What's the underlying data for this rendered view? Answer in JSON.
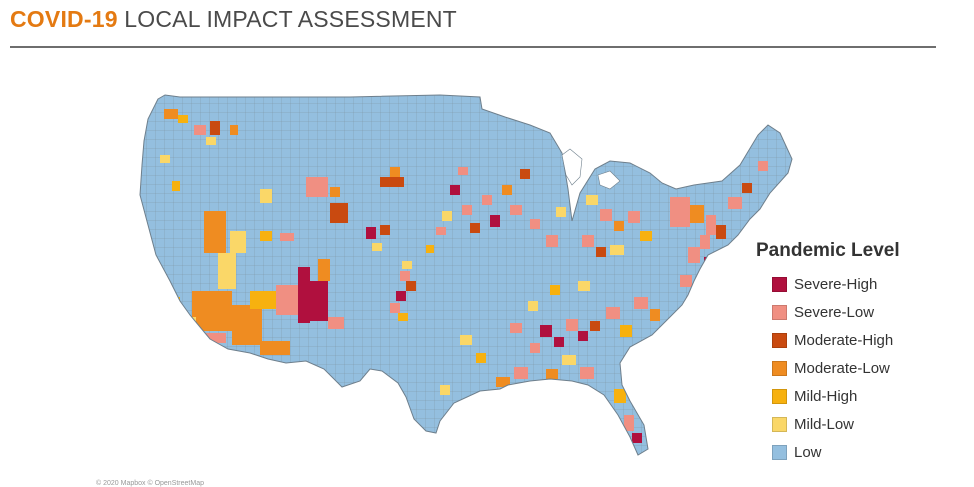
{
  "header": {
    "accent_text": "COVID-19",
    "rest_text": "LOCAL IMPACT ASSESSMENT",
    "accent_color": "#e47a12"
  },
  "map": {
    "region": "contiguous United States counties",
    "base_color": "#94bfdf",
    "border_color": "#7c8c99"
  },
  "legend": {
    "title": "Pandemic Level",
    "items": [
      {
        "label": "Severe-High",
        "color": "#b0103e"
      },
      {
        "label": "Severe-Low",
        "color": "#f08f82"
      },
      {
        "label": "Moderate-High",
        "color": "#c94a10"
      },
      {
        "label": "Moderate-Low",
        "color": "#ef8c21"
      },
      {
        "label": "Mild-High",
        "color": "#f7b10f"
      },
      {
        "label": "Mild-Low",
        "color": "#fad768"
      },
      {
        "label": "Low",
        "color": "#94bfdf"
      }
    ]
  },
  "attribution": "© 2020 Mapbox © OpenStreetMap"
}
